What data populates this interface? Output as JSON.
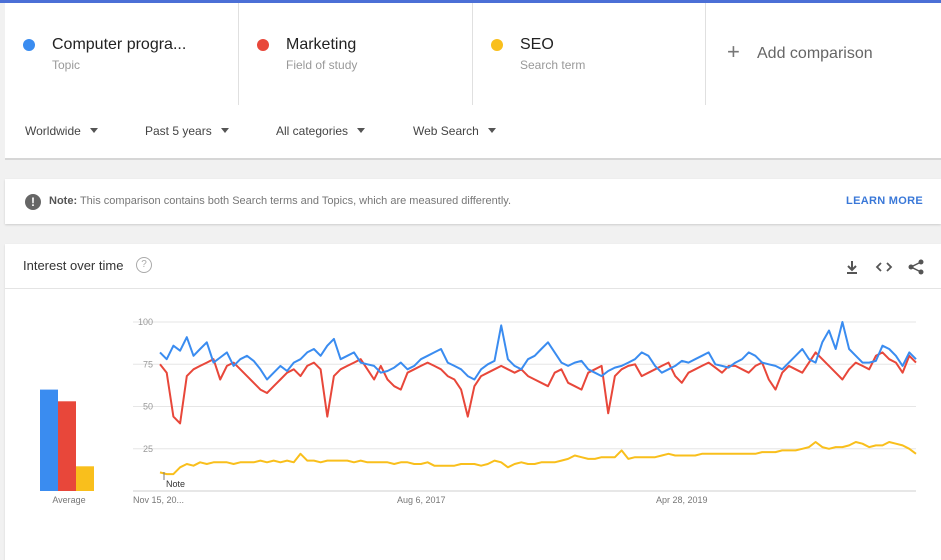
{
  "terms": [
    {
      "name": "Computer progra...",
      "type": "Topic",
      "color": "#3a8cf0"
    },
    {
      "name": "Marketing",
      "type": "Field of study",
      "color": "#e8473a"
    },
    {
      "name": "SEO",
      "type": "Search term",
      "color": "#f9bf1c"
    }
  ],
  "add_comparison": {
    "label": "Add comparison",
    "icon": "plus-icon"
  },
  "filters": [
    {
      "label": "Worldwide"
    },
    {
      "label": "Past 5 years"
    },
    {
      "label": "All categories"
    },
    {
      "label": "Web Search"
    }
  ],
  "note": {
    "bold": "Note:",
    "text": " This comparison contains both Search terms and Topics, which are measured differently.",
    "link": "LEARN MORE",
    "icon": "alert-icon"
  },
  "chart_header": {
    "title": "Interest over time",
    "help_icon": "help-icon",
    "icons": [
      "download-icon",
      "embed-icon",
      "share-icon"
    ]
  },
  "chart_data": [
    {
      "type": "bar",
      "categories": [
        "Computer progra...",
        "Marketing",
        "SEO"
      ],
      "values": [
        78,
        69,
        19
      ],
      "xlabel": "Average",
      "colors": [
        "#3a8cf0",
        "#e8473a",
        "#f9bf1c"
      ],
      "ylim": [
        0,
        100
      ]
    },
    {
      "type": "line",
      "x_tick_labels": [
        "Nov 15, 20...",
        "Aug 6, 2017",
        "Apr 28, 2019"
      ],
      "y_ticks": [
        25,
        50,
        75,
        100
      ],
      "ylim": [
        0,
        100
      ],
      "grid": true,
      "annotation": "Note",
      "series": [
        {
          "name": "Computer progra...",
          "color": "#3a8cf0",
          "values": [
            82,
            78,
            86,
            83,
            91,
            80,
            84,
            88,
            76,
            79,
            82,
            74,
            78,
            80,
            77,
            72,
            66,
            70,
            74,
            71,
            76,
            78,
            82,
            84,
            80,
            86,
            90,
            78,
            80,
            82,
            76,
            75,
            74,
            70,
            71,
            73,
            76,
            72,
            74,
            78,
            80,
            82,
            84,
            76,
            74,
            72,
            68,
            66,
            72,
            75,
            77,
            98,
            78,
            74,
            72,
            78,
            80,
            84,
            88,
            82,
            76,
            74,
            76,
            77,
            72,
            70,
            68,
            71,
            73,
            74,
            76,
            78,
            82,
            80,
            74,
            70,
            72,
            74,
            77,
            76,
            78,
            80,
            82,
            75,
            74,
            73,
            76,
            78,
            82,
            80,
            76,
            75,
            74,
            72,
            76,
            80,
            84,
            78,
            76,
            88,
            95,
            84,
            100,
            84,
            80,
            76,
            76,
            77,
            86,
            84,
            80,
            74,
            82,
            78
          ]
        },
        {
          "name": "Marketing",
          "color": "#e8473a",
          "values": [
            75,
            70,
            44,
            40,
            68,
            72,
            74,
            76,
            78,
            66,
            74,
            76,
            72,
            68,
            64,
            60,
            58,
            62,
            66,
            70,
            72,
            68,
            74,
            76,
            72,
            44,
            68,
            72,
            74,
            76,
            78,
            72,
            66,
            74,
            66,
            62,
            60,
            70,
            72,
            74,
            76,
            74,
            72,
            68,
            66,
            60,
            44,
            62,
            68,
            70,
            72,
            74,
            72,
            70,
            72,
            68,
            66,
            64,
            62,
            70,
            72,
            64,
            62,
            60,
            70,
            72,
            74,
            46,
            68,
            72,
            74,
            75,
            68,
            70,
            72,
            74,
            76,
            68,
            64,
            70,
            72,
            74,
            76,
            73,
            70,
            74,
            74,
            72,
            70,
            74,
            76,
            66,
            60,
            70,
            74,
            72,
            70,
            76,
            82,
            78,
            74,
            70,
            66,
            72,
            76,
            74,
            72,
            80,
            82,
            78,
            76,
            70,
            80,
            76
          ]
        },
        {
          "name": "SEO",
          "color": "#f9bf1c",
          "values": [
            11,
            10,
            10,
            14,
            16,
            15,
            17,
            16,
            17,
            17,
            17,
            16,
            17,
            17,
            17,
            18,
            17,
            18,
            17,
            18,
            17,
            22,
            18,
            18,
            17,
            18,
            18,
            18,
            18,
            17,
            18,
            17,
            17,
            17,
            17,
            16,
            17,
            17,
            16,
            16,
            17,
            15,
            15,
            15,
            15,
            16,
            16,
            16,
            15,
            16,
            18,
            17,
            14,
            16,
            17,
            16,
            16,
            17,
            17,
            17,
            18,
            19,
            21,
            20,
            19,
            19,
            20,
            20,
            20,
            24,
            19,
            20,
            20,
            20,
            20,
            21,
            22,
            21,
            21,
            21,
            21,
            22,
            22,
            22,
            22,
            22,
            22,
            22,
            22,
            22,
            23,
            23,
            23,
            24,
            24,
            24,
            25,
            26,
            29,
            26,
            25,
            26,
            26,
            27,
            29,
            28,
            26,
            27,
            27,
            29,
            28,
            27,
            25,
            22
          ]
        }
      ]
    }
  ]
}
